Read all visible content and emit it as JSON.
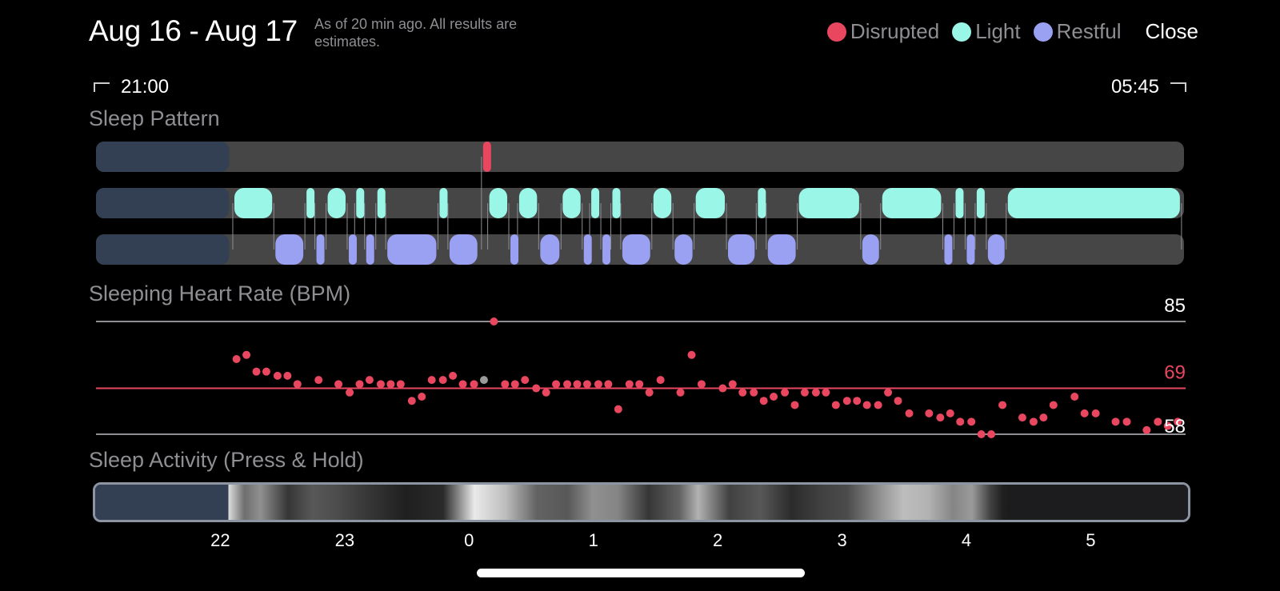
{
  "header": {
    "title": "Aug 16 - Aug 17",
    "subtitle": "As of 20 min ago. All results are estimates.",
    "close_label": "Close"
  },
  "legend": [
    {
      "label": "Disrupted",
      "color": "#e8475f"
    },
    {
      "label": "Light",
      "color": "#9af6e7"
    },
    {
      "label": "Restful",
      "color": "#9aa0f2"
    }
  ],
  "time_range": {
    "start": "21:00",
    "end": "05:45"
  },
  "sections": {
    "pattern": "Sleep Pattern",
    "heart_rate": "Sleeping Heart Rate (BPM)",
    "activity": "Sleep Activity (Press & Hold)"
  },
  "heart_rate_lines": {
    "max": "85",
    "avg": "69",
    "min": "58"
  },
  "axis_hours": [
    "22",
    "23",
    "0",
    "1",
    "2",
    "3",
    "4",
    "5"
  ],
  "colors": {
    "disrupted": "#e8475f",
    "light": "#9af6e7",
    "restful": "#9aa0f2",
    "track": "#464646",
    "pre_sleep": "#333f53"
  },
  "chart_data": {
    "type": "scatter",
    "title": "Sleeping Heart Rate (BPM)",
    "x_unit": "hours",
    "x_range": [
      21.0,
      29.75
    ],
    "y_range": [
      58,
      85
    ],
    "reference_lines": [
      85,
      69,
      58
    ],
    "sleep_start_hour": 22.07,
    "sleep_pattern": {
      "disrupted": [
        [
          24.1,
          24.18
        ]
      ],
      "light": [
        [
          22.1,
          22.43
        ],
        [
          22.68,
          22.76
        ],
        [
          22.85,
          23.02
        ],
        [
          23.08,
          23.16
        ],
        [
          23.25,
          23.33
        ],
        [
          23.75,
          23.83
        ],
        [
          24.15,
          24.32
        ],
        [
          24.39,
          24.56
        ],
        [
          24.74,
          24.91
        ],
        [
          24.97,
          25.06
        ],
        [
          25.14,
          25.22
        ],
        [
          25.47,
          25.64
        ],
        [
          25.81,
          26.07
        ],
        [
          26.31,
          26.39
        ],
        [
          26.64,
          27.15
        ],
        [
          27.31,
          27.81
        ],
        [
          27.9,
          27.99
        ],
        [
          28.07,
          28.16
        ],
        [
          28.32,
          29.73
        ]
      ],
      "restful": [
        [
          22.43,
          22.68
        ],
        [
          22.76,
          22.85
        ],
        [
          23.02,
          23.08
        ],
        [
          23.16,
          23.25
        ],
        [
          23.33,
          23.75
        ],
        [
          23.83,
          24.08
        ],
        [
          24.32,
          24.39
        ],
        [
          24.56,
          24.74
        ],
        [
          24.91,
          24.97
        ],
        [
          25.06,
          25.14
        ],
        [
          25.22,
          25.47
        ],
        [
          25.64,
          25.81
        ],
        [
          26.07,
          26.31
        ],
        [
          26.39,
          26.64
        ],
        [
          27.15,
          27.31
        ],
        [
          27.81,
          27.9
        ],
        [
          27.99,
          28.07
        ],
        [
          28.16,
          28.32
        ]
      ]
    },
    "points": [
      {
        "x": 22.13,
        "y": 76
      },
      {
        "x": 22.21,
        "y": 77
      },
      {
        "x": 22.29,
        "y": 73
      },
      {
        "x": 22.37,
        "y": 73
      },
      {
        "x": 22.46,
        "y": 72
      },
      {
        "x": 22.54,
        "y": 72
      },
      {
        "x": 22.62,
        "y": 70
      },
      {
        "x": 22.79,
        "y": 71
      },
      {
        "x": 22.95,
        "y": 70
      },
      {
        "x": 23.04,
        "y": 68
      },
      {
        "x": 23.12,
        "y": 70
      },
      {
        "x": 23.2,
        "y": 71
      },
      {
        "x": 23.29,
        "y": 70
      },
      {
        "x": 23.37,
        "y": 70
      },
      {
        "x": 23.45,
        "y": 70
      },
      {
        "x": 23.54,
        "y": 66
      },
      {
        "x": 23.62,
        "y": 67
      },
      {
        "x": 23.7,
        "y": 71
      },
      {
        "x": 23.79,
        "y": 71
      },
      {
        "x": 23.87,
        "y": 72
      },
      {
        "x": 23.95,
        "y": 70
      },
      {
        "x": 24.04,
        "y": 70
      },
      {
        "x": 24.12,
        "y": 71,
        "highlight": true
      },
      {
        "x": 24.2,
        "y": 85
      },
      {
        "x": 24.29,
        "y": 70
      },
      {
        "x": 24.37,
        "y": 70
      },
      {
        "x": 24.45,
        "y": 71
      },
      {
        "x": 24.54,
        "y": 69
      },
      {
        "x": 24.62,
        "y": 68
      },
      {
        "x": 24.7,
        "y": 70
      },
      {
        "x": 24.79,
        "y": 70
      },
      {
        "x": 24.87,
        "y": 70
      },
      {
        "x": 24.95,
        "y": 70
      },
      {
        "x": 25.04,
        "y": 70
      },
      {
        "x": 25.12,
        "y": 70
      },
      {
        "x": 25.2,
        "y": 64
      },
      {
        "x": 25.29,
        "y": 70
      },
      {
        "x": 25.37,
        "y": 70
      },
      {
        "x": 25.45,
        "y": 68
      },
      {
        "x": 25.54,
        "y": 71
      },
      {
        "x": 25.7,
        "y": 68
      },
      {
        "x": 25.79,
        "y": 77
      },
      {
        "x": 25.87,
        "y": 70
      },
      {
        "x": 26.04,
        "y": 69
      },
      {
        "x": 26.12,
        "y": 70
      },
      {
        "x": 26.2,
        "y": 68
      },
      {
        "x": 26.29,
        "y": 68
      },
      {
        "x": 26.37,
        "y": 66
      },
      {
        "x": 26.45,
        "y": 67
      },
      {
        "x": 26.54,
        "y": 68
      },
      {
        "x": 26.62,
        "y": 65
      },
      {
        "x": 26.7,
        "y": 68
      },
      {
        "x": 26.79,
        "y": 68
      },
      {
        "x": 26.87,
        "y": 68
      },
      {
        "x": 26.95,
        "y": 65
      },
      {
        "x": 27.04,
        "y": 66
      },
      {
        "x": 27.12,
        "y": 66
      },
      {
        "x": 27.2,
        "y": 65
      },
      {
        "x": 27.29,
        "y": 65
      },
      {
        "x": 27.37,
        "y": 68
      },
      {
        "x": 27.45,
        "y": 66
      },
      {
        "x": 27.54,
        "y": 63
      },
      {
        "x": 27.7,
        "y": 63
      },
      {
        "x": 27.79,
        "y": 62
      },
      {
        "x": 27.87,
        "y": 63
      },
      {
        "x": 27.95,
        "y": 61
      },
      {
        "x": 28.04,
        "y": 61
      },
      {
        "x": 28.12,
        "y": 58
      },
      {
        "x": 28.2,
        "y": 58
      },
      {
        "x": 28.29,
        "y": 65
      },
      {
        "x": 28.45,
        "y": 62
      },
      {
        "x": 28.54,
        "y": 61
      },
      {
        "x": 28.62,
        "y": 62
      },
      {
        "x": 28.7,
        "y": 65
      },
      {
        "x": 28.87,
        "y": 67
      },
      {
        "x": 28.95,
        "y": 63
      },
      {
        "x": 29.04,
        "y": 63
      },
      {
        "x": 29.2,
        "y": 61
      },
      {
        "x": 29.29,
        "y": 61
      },
      {
        "x": 29.45,
        "y": 59
      },
      {
        "x": 29.54,
        "y": 61
      },
      {
        "x": 29.62,
        "y": 60
      },
      {
        "x": 29.7,
        "y": 61
      }
    ],
    "activity_intensity": [
      {
        "x": 22.07,
        "v": 0.9
      },
      {
        "x": 22.2,
        "v": 0.4
      },
      {
        "x": 22.33,
        "v": 0.55
      },
      {
        "x": 22.55,
        "v": 0.15
      },
      {
        "x": 22.75,
        "v": 0.3
      },
      {
        "x": 22.95,
        "v": 0.25
      },
      {
        "x": 23.2,
        "v": 0.15
      },
      {
        "x": 23.5,
        "v": 0.05
      },
      {
        "x": 23.8,
        "v": 0.1
      },
      {
        "x": 24.05,
        "v": 0.95
      },
      {
        "x": 24.3,
        "v": 0.75
      },
      {
        "x": 24.55,
        "v": 0.35
      },
      {
        "x": 24.8,
        "v": 0.3
      },
      {
        "x": 25.0,
        "v": 0.55
      },
      {
        "x": 25.2,
        "v": 0.5
      },
      {
        "x": 25.45,
        "v": 0.15
      },
      {
        "x": 25.7,
        "v": 0.35
      },
      {
        "x": 25.85,
        "v": 0.7
      },
      {
        "x": 26.1,
        "v": 0.2
      },
      {
        "x": 26.35,
        "v": 0.3
      },
      {
        "x": 26.6,
        "v": 0.1
      },
      {
        "x": 26.85,
        "v": 0.2
      },
      {
        "x": 27.05,
        "v": 0.25
      },
      {
        "x": 27.35,
        "v": 0.6
      },
      {
        "x": 27.5,
        "v": 0.75
      },
      {
        "x": 27.7,
        "v": 0.7
      },
      {
        "x": 27.9,
        "v": 0.5
      },
      {
        "x": 28.05,
        "v": 0.6
      },
      {
        "x": 28.2,
        "v": 0.2
      },
      {
        "x": 28.3,
        "v": 0.05
      }
    ]
  }
}
